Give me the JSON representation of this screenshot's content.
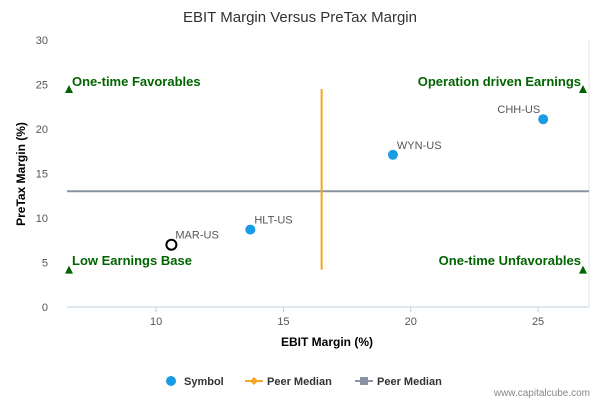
{
  "chart_data": {
    "type": "scatter",
    "title": "EBIT Margin Versus PreTax Margin",
    "xlabel": "EBIT Margin (%)",
    "ylabel": "PreTax Margin (%)",
    "xlim": [
      6.5,
      27
    ],
    "ylim": [
      0,
      30
    ],
    "xticks": [
      10,
      15,
      20,
      25
    ],
    "yticks": [
      0,
      5,
      10,
      15,
      20,
      25,
      30
    ],
    "points": [
      {
        "label": "CHH-US",
        "x": 25.2,
        "y": 21.1,
        "style": "filled"
      },
      {
        "label": "WYN-US",
        "x": 19.3,
        "y": 17.1,
        "style": "filled"
      },
      {
        "label": "HLT-US",
        "x": 13.7,
        "y": 8.7,
        "style": "filled"
      },
      {
        "label": "MAR-US",
        "x": 10.6,
        "y": 7.0,
        "style": "hollow"
      }
    ],
    "peer_median_x": {
      "x": 16.5,
      "y_range": [
        4.2,
        24.5
      ]
    },
    "peer_median_y": {
      "y": 13.0
    },
    "quadrants": {
      "top_left": "One-time Favorables",
      "top_right": "Operation driven Earnings",
      "bottom_left": "Low Earnings Base",
      "bottom_right": "One-time Unfavorables"
    },
    "legend": {
      "placement": "bottom",
      "items": [
        "Symbol",
        "Peer Median",
        "Peer Median"
      ]
    },
    "grid": false
  },
  "colors": {
    "point": "#1a9be6",
    "hollow_stroke": "#000000",
    "median_x": "#f5a623",
    "median_y": "#8a93a3",
    "quadrant": "#006400"
  },
  "credit": "www.capitalcube.com"
}
